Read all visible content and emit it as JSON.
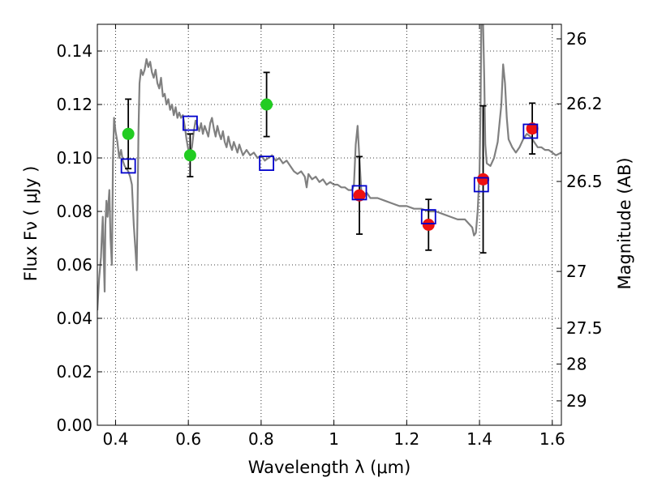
{
  "chart_data": {
    "type": "scatter",
    "xlabel": "Wavelength  λ (μm)",
    "ylabel": "Flux  Fν  ( μJy )",
    "ylabel_right": "Magnitude (AB)",
    "xlim": [
      0.35,
      1.625
    ],
    "ylim": [
      0.0,
      0.15
    ],
    "grid": true,
    "x_ticks": [
      0.4,
      0.6,
      0.8,
      1.0,
      1.2,
      1.4,
      1.6
    ],
    "x_tick_labels": [
      "0.4",
      "0.6",
      "0.8",
      "1",
      "1.2",
      "1.4",
      "1.6"
    ],
    "y_ticks": [
      0.0,
      0.02,
      0.04,
      0.06,
      0.08,
      0.1,
      0.12,
      0.14
    ],
    "y_tick_labels": [
      "0.00",
      "0.02",
      "0.04",
      "0.06",
      "0.08",
      "0.10",
      "0.12",
      "0.14"
    ],
    "right_ticks": [
      {
        "label": "26",
        "mag": 26.0
      },
      {
        "label": "26.2",
        "mag": 26.2
      },
      {
        "label": "26.5",
        "mag": 26.5
      },
      {
        "label": "27",
        "mag": 27.0
      },
      {
        "label": "27.5",
        "mag": 27.5
      },
      {
        "label": "28",
        "mag": 28.0
      },
      {
        "label": "29",
        "mag": 29.0
      }
    ],
    "series": [
      {
        "type": "line",
        "color": "#808080",
        "points": [
          [
            0.35,
            0.043
          ],
          [
            0.355,
            0.055
          ],
          [
            0.36,
            0.063
          ],
          [
            0.362,
            0.07
          ],
          [
            0.365,
            0.078
          ],
          [
            0.368,
            0.06
          ],
          [
            0.37,
            0.05
          ],
          [
            0.372,
            0.075
          ],
          [
            0.375,
            0.084
          ],
          [
            0.378,
            0.078
          ],
          [
            0.38,
            0.082
          ],
          [
            0.383,
            0.088
          ],
          [
            0.386,
            0.07
          ],
          [
            0.39,
            0.06
          ],
          [
            0.393,
            0.1
          ],
          [
            0.396,
            0.115
          ],
          [
            0.4,
            0.11
          ],
          [
            0.405,
            0.106
          ],
          [
            0.41,
            0.1
          ],
          [
            0.415,
            0.103
          ],
          [
            0.42,
            0.099
          ],
          [
            0.425,
            0.097
          ],
          [
            0.43,
            0.096
          ],
          [
            0.435,
            0.095
          ],
          [
            0.44,
            0.093
          ],
          [
            0.445,
            0.09
          ],
          [
            0.45,
            0.075
          ],
          [
            0.455,
            0.065
          ],
          [
            0.458,
            0.058
          ],
          [
            0.46,
            0.075
          ],
          [
            0.463,
            0.11
          ],
          [
            0.466,
            0.128
          ],
          [
            0.47,
            0.133
          ],
          [
            0.475,
            0.131
          ],
          [
            0.48,
            0.133
          ],
          [
            0.485,
            0.137
          ],
          [
            0.49,
            0.134
          ],
          [
            0.495,
            0.136
          ],
          [
            0.5,
            0.132
          ],
          [
            0.505,
            0.13
          ],
          [
            0.51,
            0.133
          ],
          [
            0.515,
            0.128
          ],
          [
            0.52,
            0.126
          ],
          [
            0.525,
            0.13
          ],
          [
            0.53,
            0.123
          ],
          [
            0.535,
            0.124
          ],
          [
            0.54,
            0.12
          ],
          [
            0.545,
            0.122
          ],
          [
            0.55,
            0.118
          ],
          [
            0.555,
            0.12
          ],
          [
            0.56,
            0.116
          ],
          [
            0.565,
            0.119
          ],
          [
            0.57,
            0.115
          ],
          [
            0.575,
            0.117
          ],
          [
            0.58,
            0.115
          ],
          [
            0.585,
            0.116
          ],
          [
            0.59,
            0.112
          ],
          [
            0.595,
            0.107
          ],
          [
            0.6,
            0.103
          ],
          [
            0.605,
            0.102
          ],
          [
            0.61,
            0.104
          ],
          [
            0.615,
            0.11
          ],
          [
            0.62,
            0.114
          ],
          [
            0.625,
            0.112
          ],
          [
            0.63,
            0.11
          ],
          [
            0.635,
            0.113
          ],
          [
            0.64,
            0.109
          ],
          [
            0.645,
            0.112
          ],
          [
            0.65,
            0.11
          ],
          [
            0.655,
            0.108
          ],
          [
            0.66,
            0.113
          ],
          [
            0.665,
            0.115
          ],
          [
            0.67,
            0.111
          ],
          [
            0.675,
            0.108
          ],
          [
            0.68,
            0.112
          ],
          [
            0.685,
            0.109
          ],
          [
            0.69,
            0.107
          ],
          [
            0.695,
            0.11
          ],
          [
            0.7,
            0.106
          ],
          [
            0.705,
            0.104
          ],
          [
            0.71,
            0.108
          ],
          [
            0.715,
            0.105
          ],
          [
            0.72,
            0.103
          ],
          [
            0.725,
            0.106
          ],
          [
            0.73,
            0.104
          ],
          [
            0.735,
            0.102
          ],
          [
            0.74,
            0.105
          ],
          [
            0.745,
            0.103
          ],
          [
            0.75,
            0.101
          ],
          [
            0.76,
            0.103
          ],
          [
            0.77,
            0.101
          ],
          [
            0.78,
            0.102
          ],
          [
            0.79,
            0.1
          ],
          [
            0.8,
            0.101
          ],
          [
            0.81,
            0.099
          ],
          [
            0.82,
            0.1
          ],
          [
            0.83,
            0.101
          ],
          [
            0.84,
            0.099
          ],
          [
            0.85,
            0.1
          ],
          [
            0.86,
            0.098
          ],
          [
            0.87,
            0.099
          ],
          [
            0.88,
            0.097
          ],
          [
            0.89,
            0.095
          ],
          [
            0.9,
            0.094
          ],
          [
            0.91,
            0.095
          ],
          [
            0.92,
            0.093
          ],
          [
            0.925,
            0.089
          ],
          [
            0.93,
            0.094
          ],
          [
            0.94,
            0.092
          ],
          [
            0.95,
            0.093
          ],
          [
            0.96,
            0.091
          ],
          [
            0.97,
            0.092
          ],
          [
            0.98,
            0.09
          ],
          [
            0.99,
            0.091
          ],
          [
            1.0,
            0.09
          ],
          [
            1.01,
            0.09
          ],
          [
            1.02,
            0.089
          ],
          [
            1.03,
            0.089
          ],
          [
            1.04,
            0.088
          ],
          [
            1.05,
            0.088
          ],
          [
            1.055,
            0.09
          ],
          [
            1.06,
            0.105
          ],
          [
            1.065,
            0.112
          ],
          [
            1.07,
            0.1
          ],
          [
            1.075,
            0.088
          ],
          [
            1.08,
            0.086
          ],
          [
            1.09,
            0.087
          ],
          [
            1.1,
            0.085
          ],
          [
            1.12,
            0.085
          ],
          [
            1.14,
            0.084
          ],
          [
            1.16,
            0.083
          ],
          [
            1.18,
            0.082
          ],
          [
            1.2,
            0.082
          ],
          [
            1.22,
            0.081
          ],
          [
            1.24,
            0.081
          ],
          [
            1.26,
            0.08
          ],
          [
            1.28,
            0.08
          ],
          [
            1.3,
            0.079
          ],
          [
            1.32,
            0.078
          ],
          [
            1.34,
            0.077
          ],
          [
            1.36,
            0.077
          ],
          [
            1.38,
            0.074
          ],
          [
            1.385,
            0.071
          ],
          [
            1.39,
            0.072
          ],
          [
            1.395,
            0.08
          ],
          [
            1.4,
            0.095
          ],
          [
            1.403,
            0.12
          ],
          [
            1.405,
            0.15
          ],
          [
            1.41,
            0.15
          ],
          [
            1.413,
            0.13
          ],
          [
            1.416,
            0.105
          ],
          [
            1.42,
            0.098
          ],
          [
            1.43,
            0.097
          ],
          [
            1.44,
            0.1
          ],
          [
            1.45,
            0.106
          ],
          [
            1.46,
            0.12
          ],
          [
            1.465,
            0.135
          ],
          [
            1.47,
            0.128
          ],
          [
            1.475,
            0.115
          ],
          [
            1.48,
            0.107
          ],
          [
            1.49,
            0.104
          ],
          [
            1.5,
            0.102
          ],
          [
            1.51,
            0.104
          ],
          [
            1.52,
            0.107
          ],
          [
            1.53,
            0.109
          ],
          [
            1.54,
            0.108
          ],
          [
            1.55,
            0.106
          ],
          [
            1.56,
            0.104
          ],
          [
            1.57,
            0.104
          ],
          [
            1.58,
            0.103
          ],
          [
            1.59,
            0.103
          ],
          [
            1.6,
            0.102
          ],
          [
            1.61,
            0.101
          ],
          [
            1.625,
            0.102
          ]
        ]
      },
      {
        "type": "scatter",
        "marker": "circle",
        "color": "#22cc22",
        "points": [
          {
            "x": 0.435,
            "y": 0.109,
            "err": 0.013
          },
          {
            "x": 0.605,
            "y": 0.101,
            "err": 0.008
          },
          {
            "x": 0.815,
            "y": 0.12,
            "err": 0.012
          }
        ]
      },
      {
        "type": "scatter",
        "marker": "circle",
        "color": "#ee1111",
        "points": [
          {
            "x": 1.07,
            "y": 0.086,
            "err": 0.0145
          },
          {
            "x": 1.26,
            "y": 0.075,
            "err": 0.0095
          },
          {
            "x": 1.41,
            "y": 0.092,
            "err": 0.0275
          },
          {
            "x": 1.545,
            "y": 0.111,
            "err": 0.0095
          }
        ]
      },
      {
        "type": "scatter",
        "marker": "open-square",
        "color": "#0000cc",
        "points": [
          {
            "x": 0.435,
            "y": 0.097
          },
          {
            "x": 0.605,
            "y": 0.113
          },
          {
            "x": 0.815,
            "y": 0.098
          },
          {
            "x": 1.07,
            "y": 0.087
          },
          {
            "x": 1.26,
            "y": 0.078
          },
          {
            "x": 1.405,
            "y": 0.09
          },
          {
            "x": 1.54,
            "y": 0.11
          }
        ]
      }
    ]
  }
}
